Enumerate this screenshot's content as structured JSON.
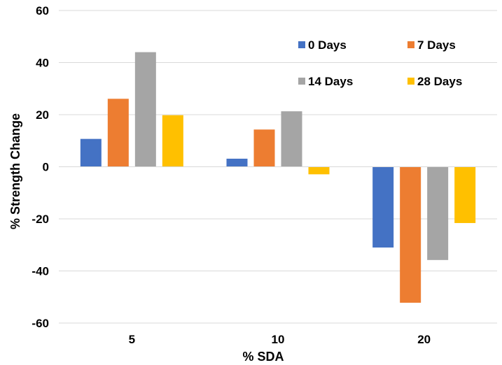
{
  "chart_data": {
    "type": "bar",
    "title": "",
    "xlabel": "% SDA",
    "ylabel": "% Strength Change",
    "categories": [
      "5",
      "10",
      "20"
    ],
    "ylim": [
      -60,
      60
    ],
    "yticks": [
      -60,
      -40,
      -20,
      0,
      20,
      40,
      60
    ],
    "grid": true,
    "legend_position": "top-right",
    "series": [
      {
        "name": "0 Days",
        "color": "#4472C4",
        "values": [
          10.7,
          3.1,
          -31.0
        ]
      },
      {
        "name": "7 Days",
        "color": "#ED7D31",
        "values": [
          26.1,
          14.3,
          -52.2
        ]
      },
      {
        "name": "14 Days",
        "color": "#A5A5A5",
        "values": [
          44.0,
          21.3,
          -35.8
        ]
      },
      {
        "name": "28 Days",
        "color": "#FFC000",
        "values": [
          19.8,
          -2.9,
          -21.6
        ]
      }
    ]
  }
}
